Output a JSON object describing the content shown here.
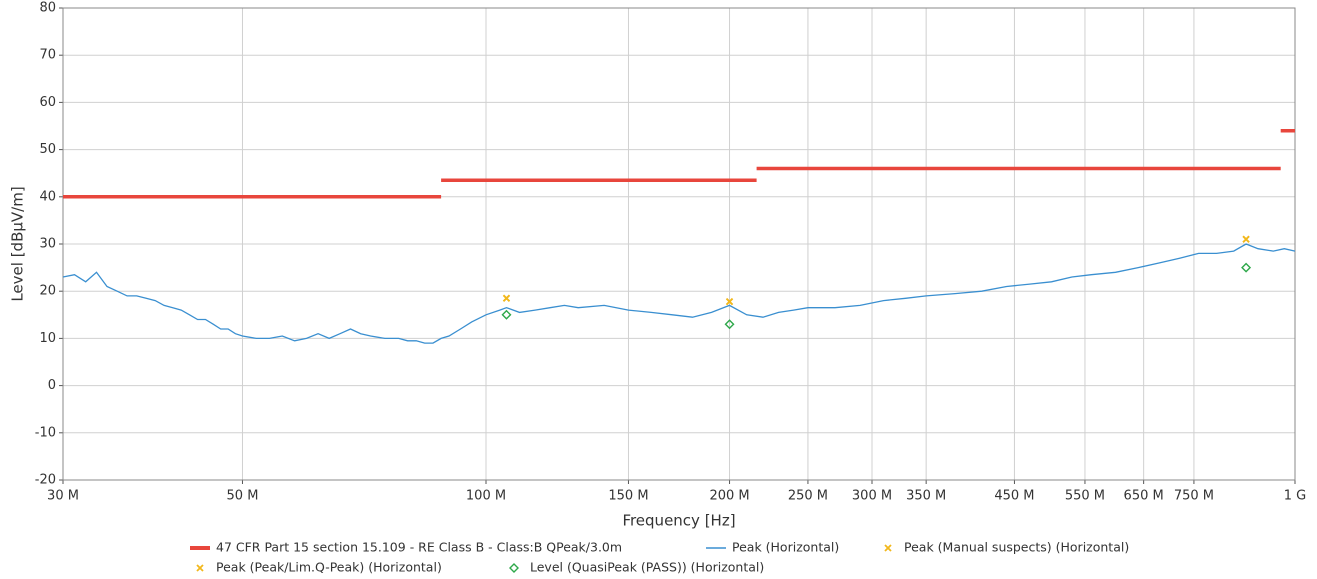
{
  "chart_data": {
    "type": "line",
    "xlabel": "Frequency [Hz]",
    "ylabel": "Level [dBµV/m]",
    "xscale": "log",
    "grid": true,
    "xlim": [
      30000000,
      1000000000
    ],
    "ylim": [
      -20,
      80
    ],
    "yticks": [
      -20,
      -10,
      0,
      10,
      20,
      30,
      40,
      50,
      60,
      70,
      80
    ],
    "xticks": [
      {
        "value": 30000000,
        "label": "30 M"
      },
      {
        "value": 50000000,
        "label": "50 M"
      },
      {
        "value": 100000000,
        "label": "100 M"
      },
      {
        "value": 150000000,
        "label": "150 M"
      },
      {
        "value": 200000000,
        "label": "200 M"
      },
      {
        "value": 250000000,
        "label": "250 M"
      },
      {
        "value": 300000000,
        "label": "300 M"
      },
      {
        "value": 350000000,
        "label": "350 M"
      },
      {
        "value": 450000000,
        "label": "450 M"
      },
      {
        "value": 550000000,
        "label": "550 M"
      },
      {
        "value": 650000000,
        "label": "650 M"
      },
      {
        "value": 750000000,
        "label": "750 M"
      },
      {
        "value": 1000000000,
        "label": "1 G"
      }
    ],
    "series": [
      {
        "name": "47 CFR Part 15 section 15.109 - RE Class B - Class:B QPeak/3.0m",
        "color": "#e8463c",
        "marker": "limit",
        "x": [
          30000000,
          88000000,
          null,
          88000000,
          216000000,
          null,
          216000000,
          960000000,
          null,
          960000000,
          1000000000
        ],
        "values": [
          40,
          40,
          null,
          43.5,
          43.5,
          null,
          46,
          46,
          null,
          54,
          54
        ]
      },
      {
        "name": "Peak (Horizontal)",
        "color": "#3a8fd0",
        "marker": "line",
        "x": [
          30000000,
          31000000,
          32000000,
          33000000,
          34000000,
          35000000,
          36000000,
          37000000,
          38000000,
          39000000,
          40000000,
          41000000,
          42000000,
          43000000,
          44000000,
          45000000,
          46000000,
          47000000,
          48000000,
          49000000,
          50000000,
          52000000,
          54000000,
          56000000,
          58000000,
          60000000,
          62000000,
          64000000,
          66000000,
          68000000,
          70000000,
          72000000,
          75000000,
          78000000,
          80000000,
          82000000,
          84000000,
          86000000,
          88000000,
          90000000,
          93000000,
          96000000,
          100000000,
          104000000,
          106000000,
          110000000,
          115000000,
          120000000,
          125000000,
          130000000,
          140000000,
          150000000,
          160000000,
          170000000,
          180000000,
          190000000,
          200000000,
          210000000,
          220000000,
          230000000,
          240000000,
          250000000,
          270000000,
          290000000,
          310000000,
          330000000,
          350000000,
          380000000,
          410000000,
          440000000,
          470000000,
          500000000,
          530000000,
          560000000,
          600000000,
          640000000,
          680000000,
          720000000,
          760000000,
          800000000,
          840000000,
          870000000,
          900000000,
          940000000,
          970000000,
          1000000000
        ],
        "values": [
          23,
          23.5,
          22,
          24,
          21,
          20,
          19,
          19,
          18.5,
          18,
          17,
          16.5,
          16,
          15,
          14,
          14,
          13,
          12,
          12,
          11,
          10.5,
          10,
          10,
          10.5,
          9.5,
          10,
          11,
          10,
          11,
          12,
          11,
          10.5,
          10,
          10,
          9.5,
          9.5,
          9,
          9,
          10,
          10.5,
          12,
          13.5,
          15,
          16,
          16.5,
          15.5,
          16,
          16.5,
          17,
          16.5,
          17,
          16,
          15.5,
          15,
          14.5,
          15.5,
          17,
          15,
          14.5,
          15.5,
          16,
          16.5,
          16.5,
          17,
          18,
          18.5,
          19,
          19.5,
          20,
          21,
          21.5,
          22,
          23,
          23.5,
          24,
          25,
          26,
          27,
          28,
          28,
          28.5,
          30,
          29,
          28.5,
          29,
          28.5
        ]
      },
      {
        "name": "Peak (Manual suspects) (Horizontal)",
        "color": "#f2b81c",
        "marker": "cross",
        "x": [
          106000000,
          200000000,
          870000000
        ],
        "values": [
          18.5,
          17.8,
          31
        ]
      },
      {
        "name": "Peak (Peak/Lim.Q-Peak) (Horizontal)",
        "color": "#f2b81c",
        "marker": "cross",
        "x": [
          106000000,
          200000000,
          870000000
        ],
        "values": [
          18.5,
          17.8,
          31
        ]
      },
      {
        "name": "Level (QuasiPeak (PASS)) (Horizontal)",
        "color": "#2ea84a",
        "marker": "diamond",
        "x": [
          106000000,
          200000000,
          870000000
        ],
        "values": [
          15,
          13,
          25
        ]
      }
    ]
  }
}
